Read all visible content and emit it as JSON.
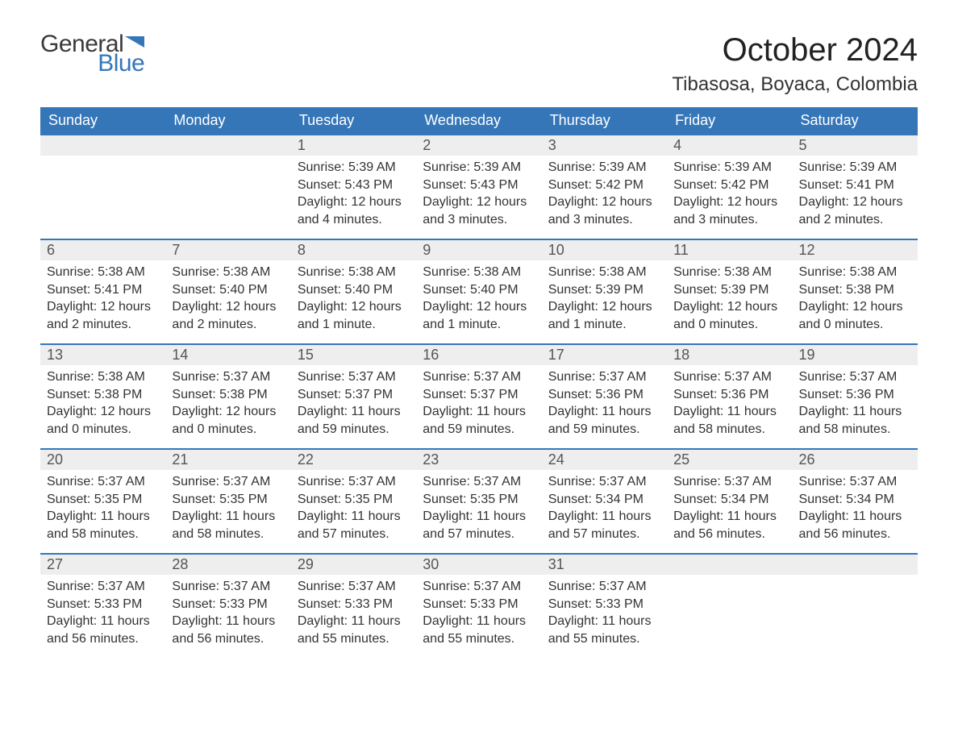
{
  "brand": {
    "general": "General",
    "blue": "Blue",
    "flag_color": "#3576b9"
  },
  "title": "October 2024",
  "location": "Tibasosa, Boyaca, Colombia",
  "colors": {
    "header_bg": "#3576b9",
    "header_text": "#ffffff",
    "daynum_bg": "#eeeeee",
    "row_border": "#3576b9",
    "body_text": "#333333",
    "page_bg": "#ffffff"
  },
  "fonts": {
    "title_size_pt": 30,
    "location_size_pt": 18,
    "header_size_pt": 14,
    "body_size_pt": 12
  },
  "weekdays": [
    "Sunday",
    "Monday",
    "Tuesday",
    "Wednesday",
    "Thursday",
    "Friday",
    "Saturday"
  ],
  "weeks": [
    [
      null,
      null,
      {
        "n": "1",
        "sunrise": "5:39 AM",
        "sunset": "5:43 PM",
        "daylight": "12 hours and 4 minutes."
      },
      {
        "n": "2",
        "sunrise": "5:39 AM",
        "sunset": "5:43 PM",
        "daylight": "12 hours and 3 minutes."
      },
      {
        "n": "3",
        "sunrise": "5:39 AM",
        "sunset": "5:42 PM",
        "daylight": "12 hours and 3 minutes."
      },
      {
        "n": "4",
        "sunrise": "5:39 AM",
        "sunset": "5:42 PM",
        "daylight": "12 hours and 3 minutes."
      },
      {
        "n": "5",
        "sunrise": "5:39 AM",
        "sunset": "5:41 PM",
        "daylight": "12 hours and 2 minutes."
      }
    ],
    [
      {
        "n": "6",
        "sunrise": "5:38 AM",
        "sunset": "5:41 PM",
        "daylight": "12 hours and 2 minutes."
      },
      {
        "n": "7",
        "sunrise": "5:38 AM",
        "sunset": "5:40 PM",
        "daylight": "12 hours and 2 minutes."
      },
      {
        "n": "8",
        "sunrise": "5:38 AM",
        "sunset": "5:40 PM",
        "daylight": "12 hours and 1 minute."
      },
      {
        "n": "9",
        "sunrise": "5:38 AM",
        "sunset": "5:40 PM",
        "daylight": "12 hours and 1 minute."
      },
      {
        "n": "10",
        "sunrise": "5:38 AM",
        "sunset": "5:39 PM",
        "daylight": "12 hours and 1 minute."
      },
      {
        "n": "11",
        "sunrise": "5:38 AM",
        "sunset": "5:39 PM",
        "daylight": "12 hours and 0 minutes."
      },
      {
        "n": "12",
        "sunrise": "5:38 AM",
        "sunset": "5:38 PM",
        "daylight": "12 hours and 0 minutes."
      }
    ],
    [
      {
        "n": "13",
        "sunrise": "5:38 AM",
        "sunset": "5:38 PM",
        "daylight": "12 hours and 0 minutes."
      },
      {
        "n": "14",
        "sunrise": "5:37 AM",
        "sunset": "5:38 PM",
        "daylight": "12 hours and 0 minutes."
      },
      {
        "n": "15",
        "sunrise": "5:37 AM",
        "sunset": "5:37 PM",
        "daylight": "11 hours and 59 minutes."
      },
      {
        "n": "16",
        "sunrise": "5:37 AM",
        "sunset": "5:37 PM",
        "daylight": "11 hours and 59 minutes."
      },
      {
        "n": "17",
        "sunrise": "5:37 AM",
        "sunset": "5:36 PM",
        "daylight": "11 hours and 59 minutes."
      },
      {
        "n": "18",
        "sunrise": "5:37 AM",
        "sunset": "5:36 PM",
        "daylight": "11 hours and 58 minutes."
      },
      {
        "n": "19",
        "sunrise": "5:37 AM",
        "sunset": "5:36 PM",
        "daylight": "11 hours and 58 minutes."
      }
    ],
    [
      {
        "n": "20",
        "sunrise": "5:37 AM",
        "sunset": "5:35 PM",
        "daylight": "11 hours and 58 minutes."
      },
      {
        "n": "21",
        "sunrise": "5:37 AM",
        "sunset": "5:35 PM",
        "daylight": "11 hours and 58 minutes."
      },
      {
        "n": "22",
        "sunrise": "5:37 AM",
        "sunset": "5:35 PM",
        "daylight": "11 hours and 57 minutes."
      },
      {
        "n": "23",
        "sunrise": "5:37 AM",
        "sunset": "5:35 PM",
        "daylight": "11 hours and 57 minutes."
      },
      {
        "n": "24",
        "sunrise": "5:37 AM",
        "sunset": "5:34 PM",
        "daylight": "11 hours and 57 minutes."
      },
      {
        "n": "25",
        "sunrise": "5:37 AM",
        "sunset": "5:34 PM",
        "daylight": "11 hours and 56 minutes."
      },
      {
        "n": "26",
        "sunrise": "5:37 AM",
        "sunset": "5:34 PM",
        "daylight": "11 hours and 56 minutes."
      }
    ],
    [
      {
        "n": "27",
        "sunrise": "5:37 AM",
        "sunset": "5:33 PM",
        "daylight": "11 hours and 56 minutes."
      },
      {
        "n": "28",
        "sunrise": "5:37 AM",
        "sunset": "5:33 PM",
        "daylight": "11 hours and 56 minutes."
      },
      {
        "n": "29",
        "sunrise": "5:37 AM",
        "sunset": "5:33 PM",
        "daylight": "11 hours and 55 minutes."
      },
      {
        "n": "30",
        "sunrise": "5:37 AM",
        "sunset": "5:33 PM",
        "daylight": "11 hours and 55 minutes."
      },
      {
        "n": "31",
        "sunrise": "5:37 AM",
        "sunset": "5:33 PM",
        "daylight": "11 hours and 55 minutes."
      },
      null,
      null
    ]
  ],
  "labels": {
    "sunrise": "Sunrise: ",
    "sunset": "Sunset: ",
    "daylight": "Daylight: "
  }
}
